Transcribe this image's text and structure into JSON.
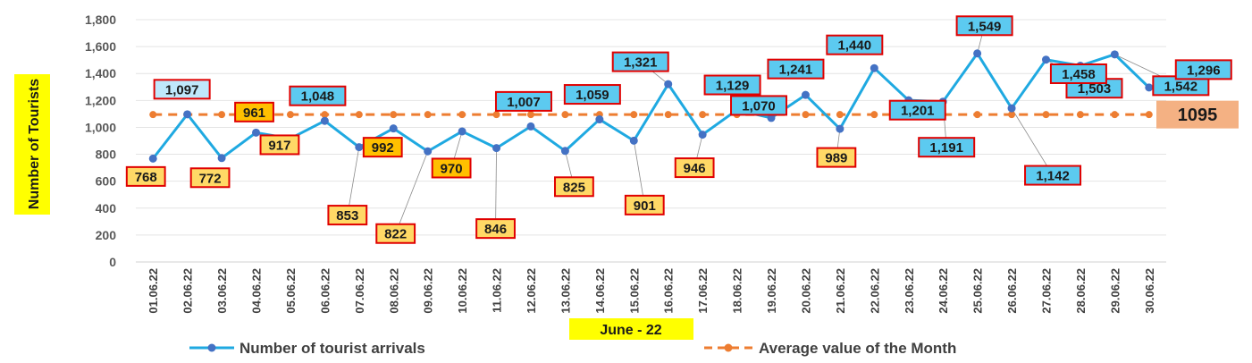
{
  "chart_data": {
    "type": "line",
    "xlabel": "June - 22",
    "ylabel": "Number of Tourists",
    "ylim": [
      0,
      1800
    ],
    "yticks": [
      "0",
      "200",
      "400",
      "600",
      "800",
      "1,000",
      "1,200",
      "1,400",
      "1,600",
      "1,800"
    ],
    "categories": [
      "01.06.22",
      "02.06.22",
      "03.06.22",
      "04.06.22",
      "05.06.22",
      "06.06.22",
      "07.06.22",
      "08.06.22",
      "09.06.22",
      "10.06.22",
      "11.06.22",
      "12.06.22",
      "13.06.22",
      "14.06.22",
      "15.06.22",
      "16.06.22",
      "17.06.22",
      "18.06.22",
      "19.06.22",
      "20.06.22",
      "21.06.22",
      "22.06.22",
      "23.06.22",
      "24.06.22",
      "25.06.22",
      "26.06.22",
      "27.06.22",
      "28.06.22",
      "29.06.22",
      "30.06.22"
    ],
    "series": [
      {
        "name": "Number of tourist arrivals",
        "color": "#1fa9e1",
        "values": [
          768,
          1097,
          772,
          961,
          917,
          1048,
          853,
          992,
          822,
          970,
          846,
          1007,
          825,
          1059,
          901,
          1321,
          946,
          1129,
          1070,
          1241,
          989,
          1440,
          1201,
          1191,
          1549,
          1142,
          1503,
          1458,
          1542,
          1296
        ],
        "labels": [
          "768",
          "1,097",
          "772",
          "961",
          "917",
          "1,048",
          "853",
          "992",
          "822",
          "970",
          "846",
          "1,007",
          "825",
          "1,059",
          "901",
          "1,321",
          "946",
          "1,129",
          "1,070",
          "1,241",
          "989",
          "1,440",
          "1,201",
          "1,191",
          "1,549",
          "1,142",
          "1,503",
          "1,458",
          "1,542",
          "1,296"
        ]
      },
      {
        "name": "Average value of the Month",
        "color": "#ed7d31",
        "value": 1095,
        "label": "1095"
      }
    ],
    "grid": true,
    "legend": "bottom"
  }
}
